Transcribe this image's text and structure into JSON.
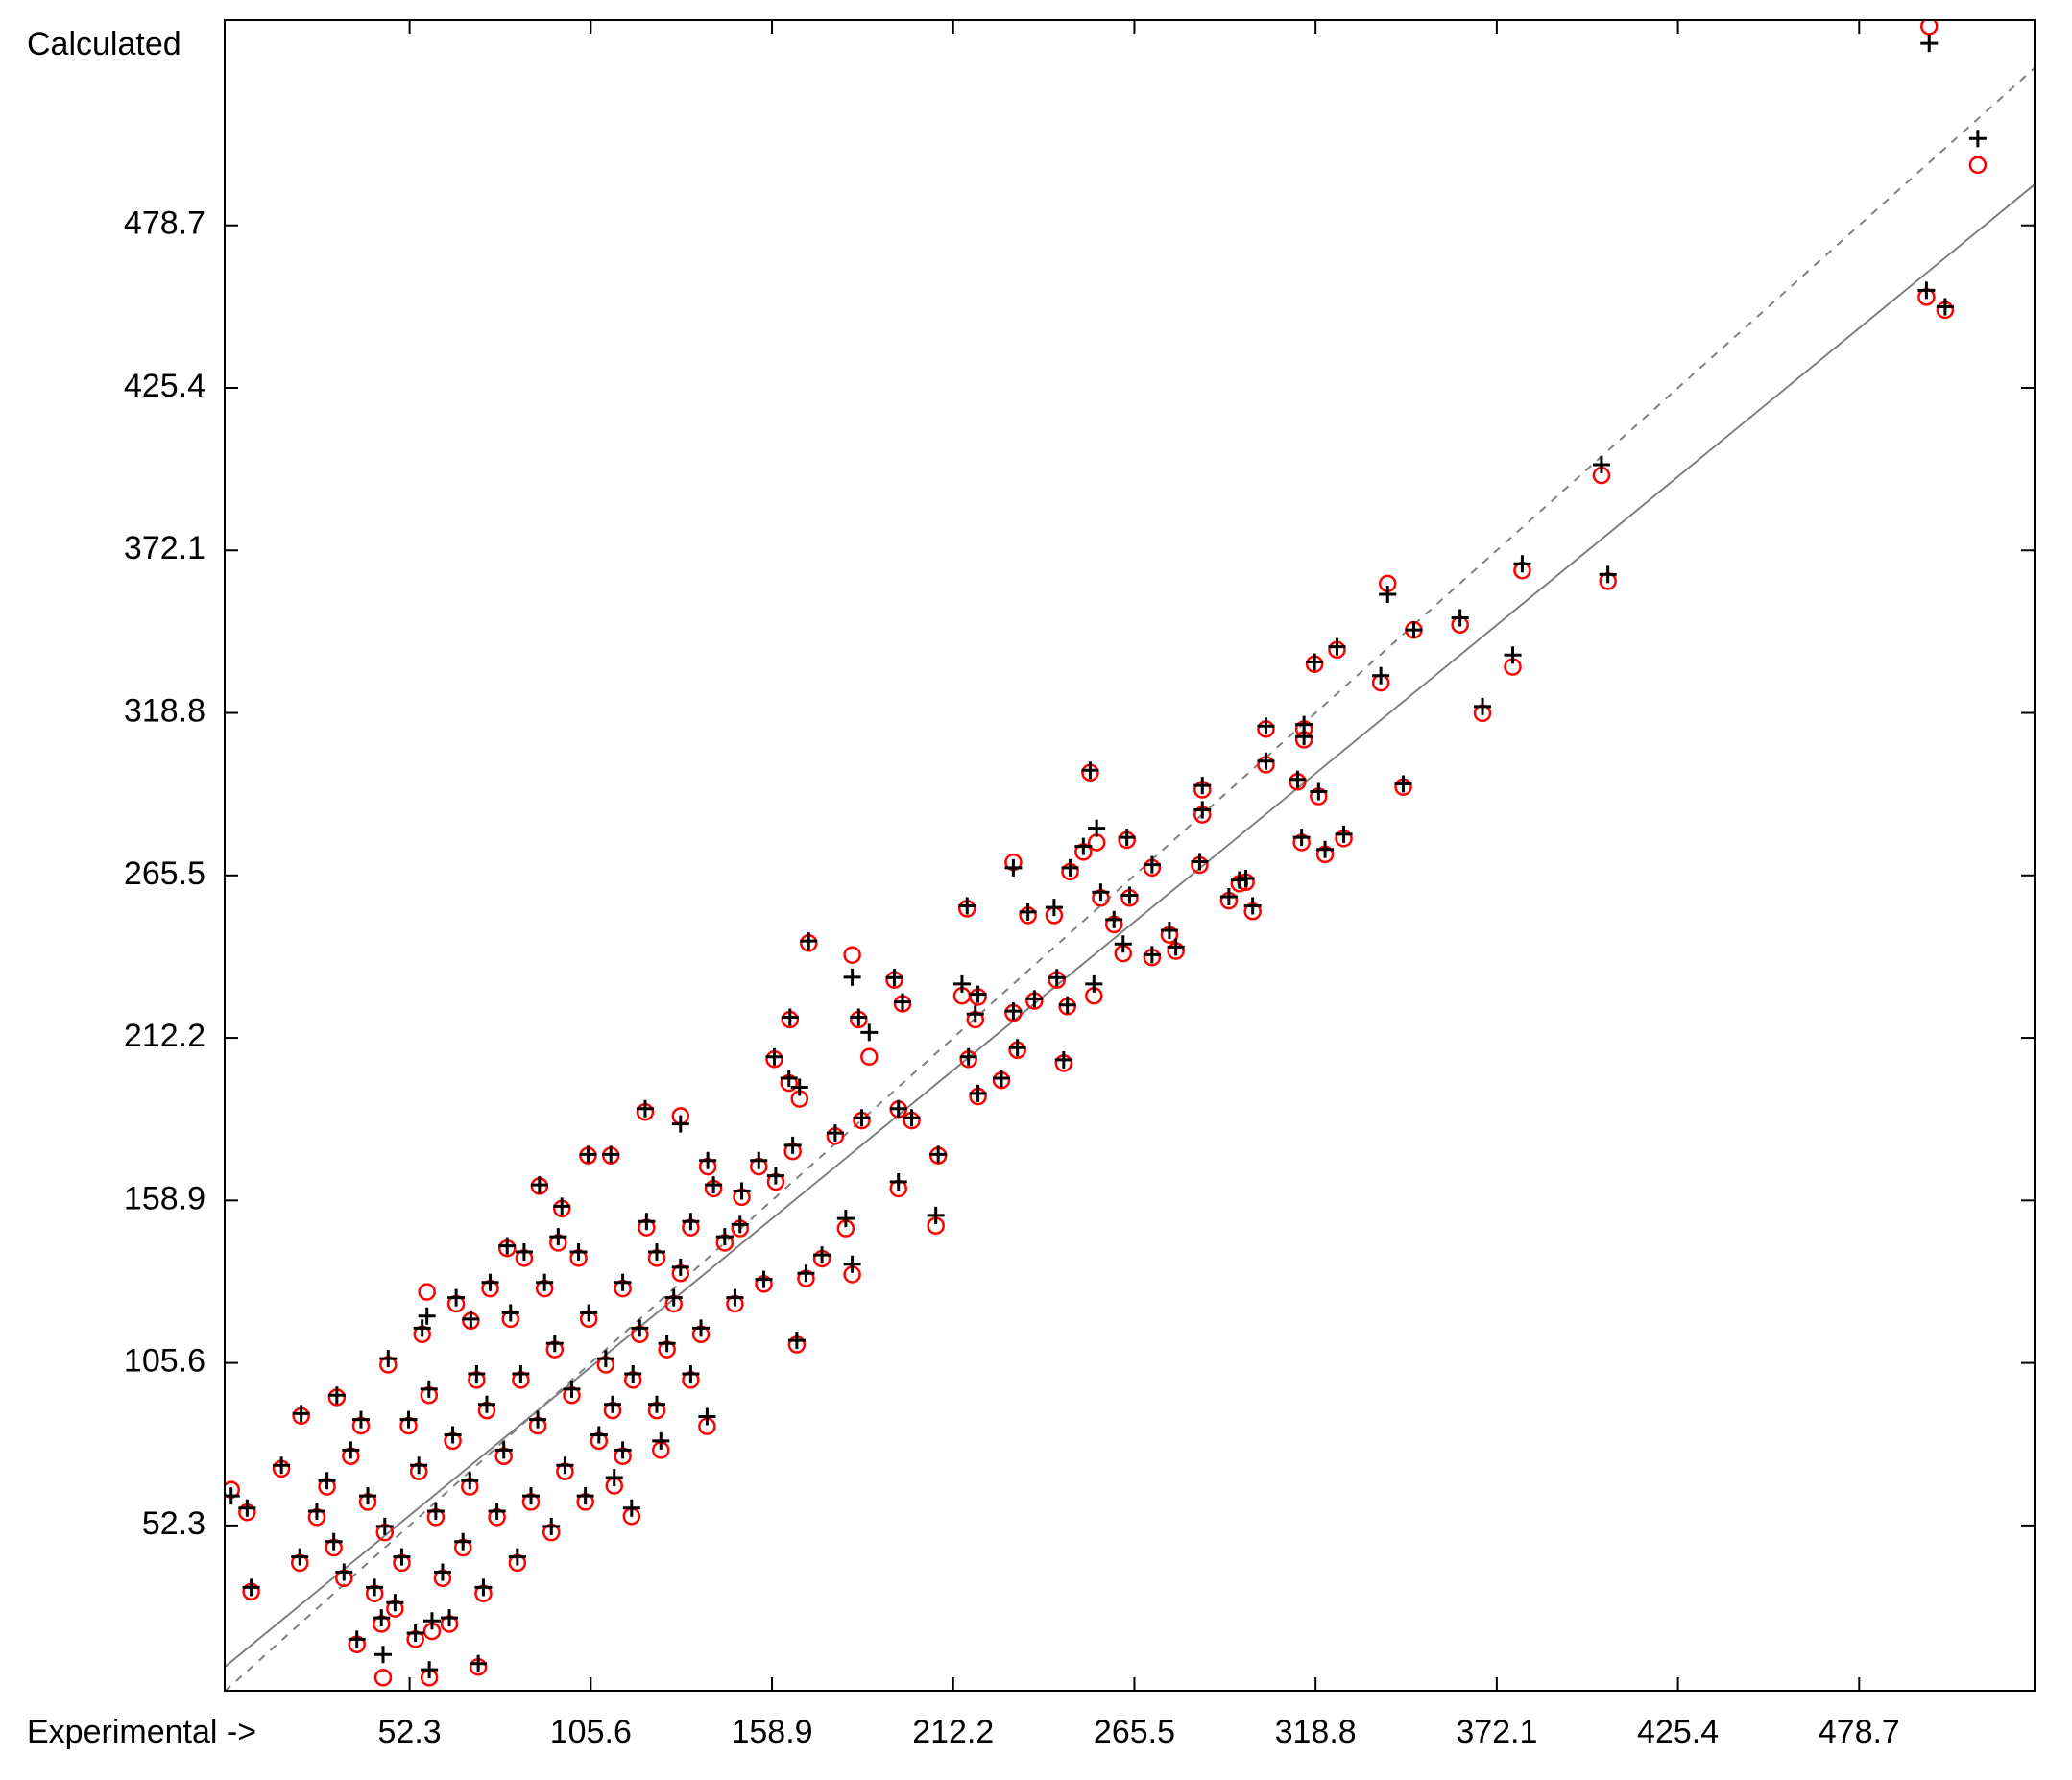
{
  "chart_data": {
    "type": "scatter",
    "x_label": "Experimental ->",
    "y_label": "Calculated",
    "xlim": [
      -2.1,
      530.3
    ],
    "ylim": [
      -1.9,
      546
    ],
    "xticks": [
      52.3,
      105.6,
      158.9,
      212.2,
      265.5,
      318.8,
      372.1,
      425.4,
      478.7
    ],
    "yticks": [
      52.3,
      105.6,
      158.9,
      212.2,
      265.5,
      318.8,
      372.1,
      425.4,
      478.7
    ],
    "reference_lines": [
      {
        "style": "dashed",
        "color": "#808080",
        "x": [
          -2.1,
          530.3
        ],
        "y": [
          -2.1,
          530.3
        ]
      },
      {
        "style": "solid",
        "color": "#808080",
        "x": [
          -2.1,
          530.3
        ],
        "y": [
          5.9,
          492.1
        ]
      }
    ],
    "x": [
      499.3,
      513.6,
      498.5,
      504,
      402.9,
      404.8,
      379.6,
      340,
      361.3,
      347.7,
      325.1,
      318.5,
      338,
      376.8,
      367.9,
      304.2,
      315.4,
      315.4,
      304.2,
      252.5,
      285.5,
      319.7,
      313.5,
      344.6,
      285.5,
      327.1,
      314.7,
      321.6,
      263.3,
      254.4,
      229.9,
      284.7,
      270.7,
      296.4,
      298.3,
      293.3,
      300.3,
      216.3,
      234.2,
      241.9,
      246.6,
      250.5,
      255.6,
      264.1,
      259.5,
      262.2,
      270.7,
      275.8,
      277.7,
      169.7,
      182.5,
      194.9,
      197.3,
      184.4,
      187.5,
      214.8,
      219.5,
      218.7,
      229.9,
      242.7,
      253.6,
      245.8,
      236.1,
      231.1,
      226.4,
      219.5,
      216.7,
      244.7,
      164.2,
      159.6,
      167,
      163.9,
      177.5,
      185.3,
      196.1,
      200,
      207.8,
      207.1,
      196.1,
      180.6,
      182.5,
      173.6,
      168.9,
      166.2,
      156.5,
      149.5,
      141.7,
      132,
      121.6,
      111.5,
      104.8,
      90.5,
      97.1,
      81,
      57.4,
      70.3,
      30.9,
      20.4,
      14.6,
      -0.2,
      4.5,
      5.7,
      36.8,
      44.5,
      58.1,
      72.5,
      58.9,
      117.6,
      139.8,
      126.2,
      112.5,
      40,
      45,
      50,
      55,
      60,
      65,
      70,
      75,
      80,
      85,
      90,
      95,
      100,
      105,
      110,
      115,
      120,
      125,
      130,
      135,
      42,
      48,
      52,
      58,
      62,
      68,
      72,
      78,
      82,
      88,
      92,
      98,
      102,
      108,
      112,
      118,
      122,
      128,
      132,
      138,
      30,
      35,
      25,
      20,
      28,
      38,
      33,
      46,
      56,
      66,
      76,
      86,
      96,
      74,
      84,
      94,
      104,
      64,
      54,
      44,
      150,
      155,
      145,
      160,
      165,
      140,
      148,
      135,
      125,
      115
    ],
    "series": [
      {
        "marker": "o",
        "color": "#ff0000",
        "values": [
          544,
          498.5,
          455.2,
          450.9,
          396.7,
          362,
          365.5,
          361.2,
          347.7,
          346,
          339.5,
          334.8,
          328.7,
          333.9,
          318.7,
          313.5,
          313.5,
          310,
          301.8,
          299.2,
          293.6,
          291.4,
          296.2,
          294.5,
          285.4,
          277.6,
          276.3,
          272.4,
          277.1,
          276.3,
          269.8,
          268.9,
          268,
          262.8,
          263.3,
          257.2,
          253.7,
          254.6,
          252.4,
          252.4,
          266.7,
          273.2,
          258.1,
          258.1,
          249.4,
          239.9,
          238.6,
          246,
          240.7,
          243.3,
          239.4,
          231.2,
          223.4,
          218.2,
          206,
          226,
          225.6,
          218.2,
          220.4,
          231.2,
          226,
          222.5,
          224.3,
          208.2,
          198.3,
          193,
          205.2,
          203.9,
          218.2,
          205.2,
          192.2,
          197.4,
          180,
          185.1,
          188.8,
          185.1,
          173.6,
          150.6,
          162.8,
          149.7,
          134.6,
          139.8,
          133.3,
          111.6,
          131.5,
          149.7,
          162.8,
          186.6,
          187.9,
          173.6,
          173.6,
          163.6,
          156.2,
          143.2,
          128.9,
          119.4,
          94.3,
          88.2,
          70.9,
          64,
          56.6,
          30.6,
          13.3,
          2.4,
          2.4,
          5.9,
          17.6,
          55.3,
          84.8,
          77,
          65.3,
          60,
          50,
          40,
          70,
          55,
          80,
          65,
          90,
          75,
          100,
          85,
          110,
          95,
          120,
          105,
          130,
          115,
          140,
          125,
          150,
          30,
          25,
          85,
          95,
          35,
          45,
          100,
          55,
          120,
          60,
          130,
          70,
          140,
          80,
          90,
          100,
          150,
          110,
          135,
          115,
          45,
          75,
          55,
          40,
          65,
          85,
          35,
          105,
          115,
          125,
          130,
          140,
          145,
          30,
          40,
          50,
          60,
          20,
          15,
          20,
          160,
          170,
          145,
          165,
          175,
          170,
          125,
          100,
          90,
          75
        ]
      },
      {
        "marker": "+",
        "color": "#000000",
        "values": [
          538.4,
          507.2,
          457.4,
          452,
          400.2,
          364.2,
          367.7,
          357.7,
          350,
          346,
          340.5,
          335.5,
          331,
          337.8,
          320.9,
          314.5,
          315,
          311,
          303,
          300,
          295,
          293,
          297,
          295.5,
          287,
          279,
          278,
          274,
          278,
          281,
          268,
          270,
          269,
          264,
          264.5,
          258.5,
          255.5,
          255.5,
          253.5,
          255,
          268,
          275,
          260,
          259,
          251,
          243,
          239.5,
          247.5,
          242,
          244,
          232.1,
          232,
          224,
          219,
          214,
          229.9,
          226.5,
          220,
          221,
          232,
          229.9,
          223,
          225,
          209,
          199,
          194,
          206,
          205,
          219,
          206,
          196,
          199,
          181,
          186,
          189,
          186,
          174,
          154,
          165,
          153,
          138,
          141,
          135,
          113,
          133,
          151,
          164,
          184,
          189,
          174,
          174,
          164,
          157,
          144,
          121,
          120,
          95,
          89,
          72,
          62,
          58,
          32,
          15,
          10,
          5,
          7,
          21,
          58,
          88,
          80,
          68,
          62,
          52,
          42,
          72,
          57,
          82,
          67,
          92,
          77,
          102,
          87,
          112,
          97,
          122,
          107,
          132,
          117,
          142,
          127,
          152,
          32,
          27,
          87,
          97,
          37,
          47,
          102,
          57,
          122,
          62,
          132,
          72,
          142,
          82,
          92,
          102,
          152,
          112,
          137,
          117,
          47,
          77,
          57,
          42,
          67,
          87,
          37,
          107,
          117,
          127,
          132,
          142,
          147,
          32,
          42,
          52,
          62,
          22,
          17,
          22,
          162,
          172,
          147,
          167,
          177,
          172,
          127,
          102,
          92,
          77
        ]
      }
    ]
  }
}
